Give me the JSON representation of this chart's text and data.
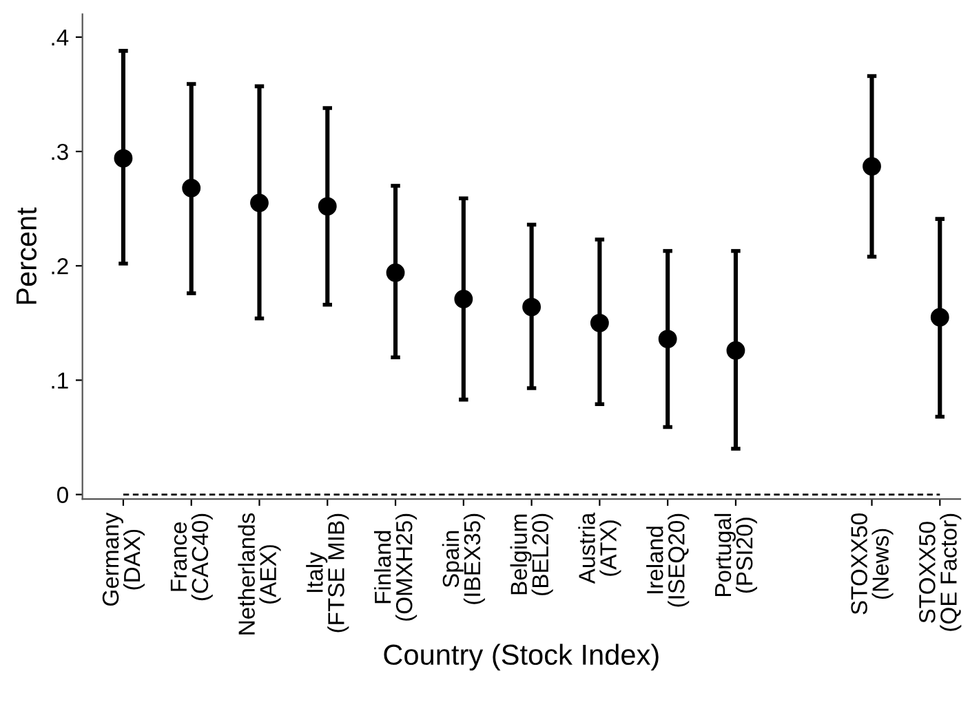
{
  "chart_data": {
    "type": "scatter",
    "xlabel": "Country (Stock Index)",
    "ylabel": "Percent",
    "categories": [
      "Germany\n(DAX)",
      "France\n(CAC40)",
      "Netherlands\n(AEX)",
      "Italy\n(FTSE MIB)",
      "Finland\n(OMXH25)",
      "Spain\n(IBEX35)",
      "Belgium\n(BEL20)",
      "Austria\n(ATX)",
      "Ireland\n(ISEQ20)",
      "Portugal\n(PSI20)",
      null,
      "STOXX50\n(News)",
      "STOXX50\n(QE Factor)"
    ],
    "series": [
      {
        "color": "#000000",
        "values": [
          0.294,
          0.268,
          0.255,
          0.252,
          0.194,
          0.171,
          0.164,
          0.15,
          0.136,
          0.126,
          null,
          0.287,
          0.155
        ],
        "errors": [
          [
            0.202,
            0.388
          ],
          [
            0.176,
            0.359
          ],
          [
            0.154,
            0.357
          ],
          [
            0.166,
            0.338
          ],
          [
            0.12,
            0.27
          ],
          [
            0.083,
            0.259
          ],
          [
            0.093,
            0.236
          ],
          [
            0.079,
            0.223
          ],
          [
            0.059,
            0.213
          ],
          [
            0.04,
            0.213
          ],
          null,
          [
            0.208,
            0.366
          ],
          [
            0.068,
            0.241
          ]
        ]
      }
    ],
    "ylim": [
      -0.004,
      0.42
    ],
    "yticks": [
      {
        "value": 0,
        "label": "0"
      },
      {
        "value": 0.1,
        "label": ".1"
      },
      {
        "value": 0.2,
        "label": ".2"
      },
      {
        "value": 0.3,
        "label": ".3"
      },
      {
        "value": 0.4,
        "label": ".4"
      }
    ],
    "ref_lines": [
      {
        "axis": "y",
        "value": 0,
        "color": "#000000",
        "line_style": "dashed"
      }
    ],
    "grid": false,
    "legend": false,
    "marker": "circle"
  }
}
